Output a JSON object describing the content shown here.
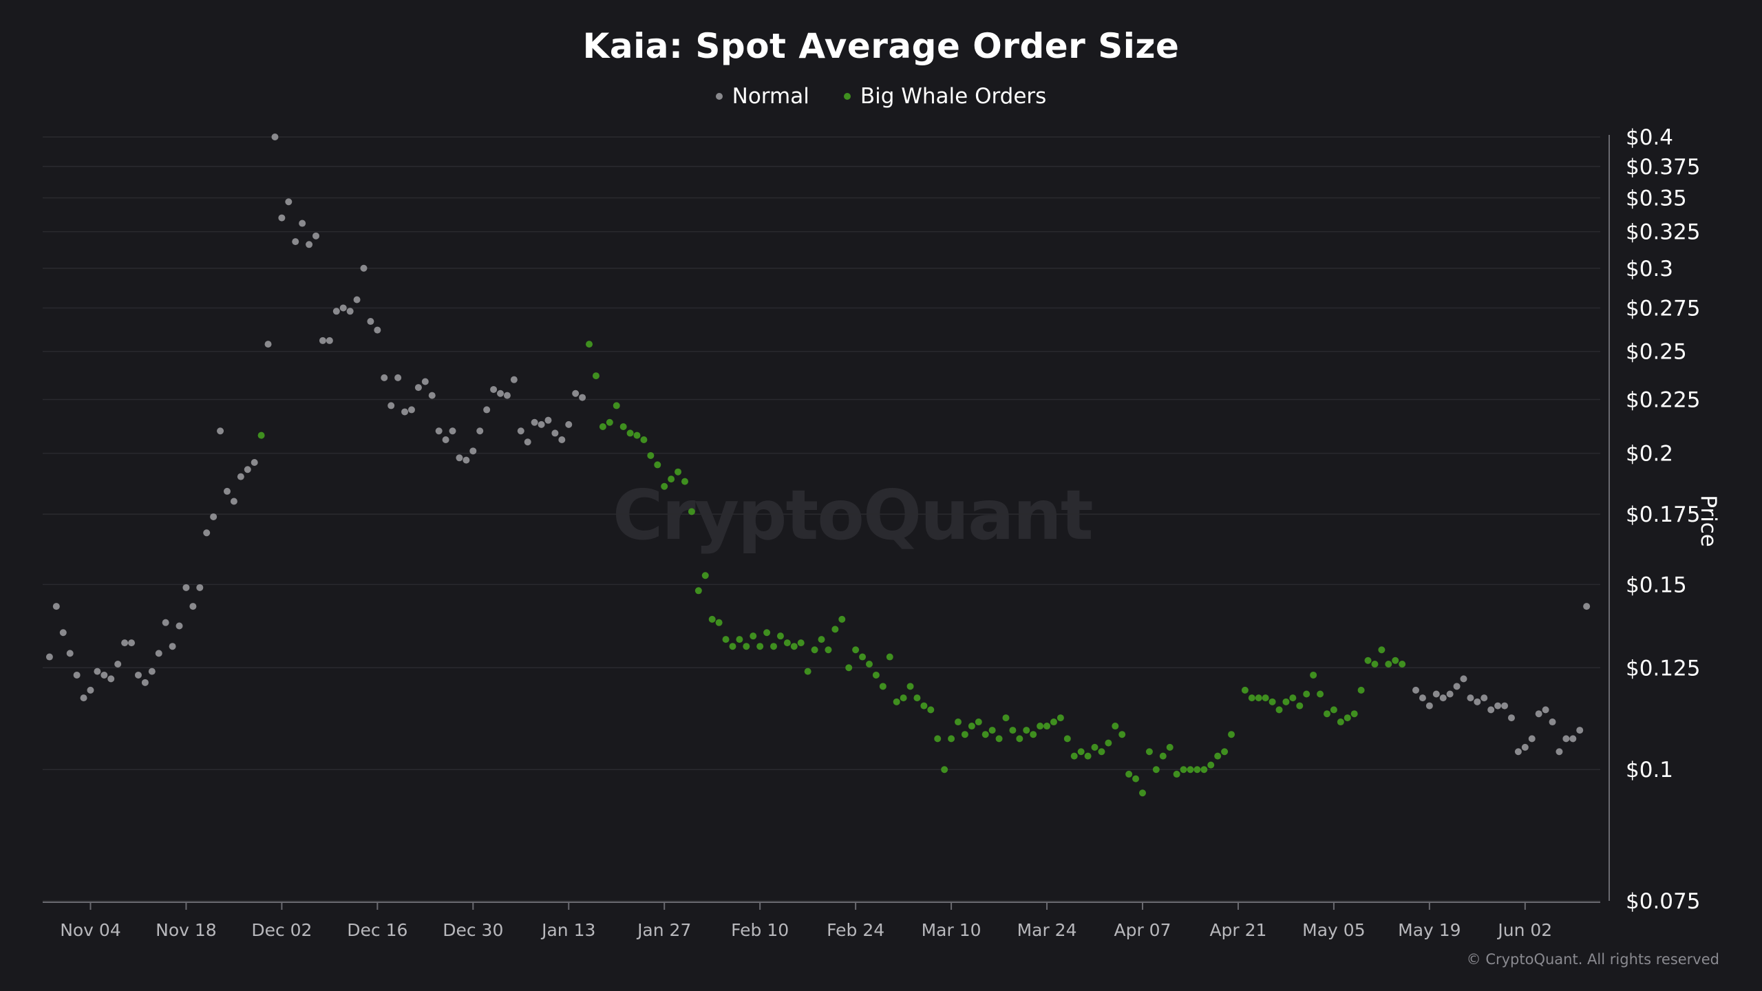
{
  "title": "Kaia: Spot Average Order Size",
  "watermark": "CryptoQuant",
  "credit": "© CryptoQuant. All rights reserved",
  "colors": {
    "background": "#19191d",
    "normal": "#8a8a8e",
    "big_whale": "#3f8f1f",
    "grid": "#2a2a2f",
    "axis_text": "#ffffff",
    "x_tick_text": "#b8b8bc"
  },
  "chart_data": {
    "type": "scatter",
    "title": "Kaia: Spot Average Order Size",
    "ylabel": "Price",
    "xlabel": "",
    "y_scale": "log",
    "ylim": [
      0.075,
      0.4
    ],
    "xlim": [
      "2024-10-28",
      "2025-06-13"
    ],
    "grid": "horizontal",
    "legend_placement": "top-center",
    "y_ticks": [
      {
        "value": 0.4,
        "label": "$0.4"
      },
      {
        "value": 0.375,
        "label": "$0.375"
      },
      {
        "value": 0.35,
        "label": "$0.35"
      },
      {
        "value": 0.325,
        "label": "$0.325"
      },
      {
        "value": 0.3,
        "label": "$0.3"
      },
      {
        "value": 0.275,
        "label": "$0.275"
      },
      {
        "value": 0.25,
        "label": "$0.25"
      },
      {
        "value": 0.225,
        "label": "$0.225"
      },
      {
        "value": 0.2,
        "label": "$0.2"
      },
      {
        "value": 0.175,
        "label": "$0.175"
      },
      {
        "value": 0.15,
        "label": "$0.15"
      },
      {
        "value": 0.125,
        "label": "$0.125"
      },
      {
        "value": 0.1,
        "label": "$0.1"
      },
      {
        "value": 0.075,
        "label": "$0.075"
      }
    ],
    "x_ticks": [
      {
        "date": "2024-11-04",
        "label": "Nov 04"
      },
      {
        "date": "2024-11-18",
        "label": "Nov 18"
      },
      {
        "date": "2024-12-02",
        "label": "Dec 02"
      },
      {
        "date": "2024-12-16",
        "label": "Dec 16"
      },
      {
        "date": "2024-12-30",
        "label": "Dec 30"
      },
      {
        "date": "2025-01-13",
        "label": "Jan 13"
      },
      {
        "date": "2025-01-27",
        "label": "Jan 27"
      },
      {
        "date": "2025-02-10",
        "label": "Feb 10"
      },
      {
        "date": "2025-02-24",
        "label": "Feb 24"
      },
      {
        "date": "2025-03-10",
        "label": "Mar 10"
      },
      {
        "date": "2025-03-24",
        "label": "Mar 24"
      },
      {
        "date": "2025-04-07",
        "label": "Apr 07"
      },
      {
        "date": "2025-04-21",
        "label": "Apr 21"
      },
      {
        "date": "2025-05-05",
        "label": "May 05"
      },
      {
        "date": "2025-05-19",
        "label": "May 19"
      },
      {
        "date": "2025-06-02",
        "label": "Jun 02"
      }
    ],
    "series": [
      {
        "name": "Normal",
        "color": "#8a8a8e",
        "points": [
          [
            "2024-10-29",
            0.128
          ],
          [
            "2024-10-30",
            0.143
          ],
          [
            "2024-10-31",
            0.135
          ],
          [
            "2024-11-01",
            0.129
          ],
          [
            "2024-11-02",
            0.123
          ],
          [
            "2024-11-03",
            0.117
          ],
          [
            "2024-11-04",
            0.119
          ],
          [
            "2024-11-05",
            0.124
          ],
          [
            "2024-11-06",
            0.123
          ],
          [
            "2024-11-07",
            0.122
          ],
          [
            "2024-11-08",
            0.126
          ],
          [
            "2024-11-09",
            0.132
          ],
          [
            "2024-11-10",
            0.132
          ],
          [
            "2024-11-11",
            0.123
          ],
          [
            "2024-11-12",
            0.121
          ],
          [
            "2024-11-13",
            0.124
          ],
          [
            "2024-11-14",
            0.129
          ],
          [
            "2024-11-15",
            0.138
          ],
          [
            "2024-11-16",
            0.131
          ],
          [
            "2024-11-17",
            0.137
          ],
          [
            "2024-11-18",
            0.149
          ],
          [
            "2024-11-19",
            0.143
          ],
          [
            "2024-11-20",
            0.149
          ],
          [
            "2024-11-21",
            0.168
          ],
          [
            "2024-11-22",
            0.174
          ],
          [
            "2024-11-23",
            0.21
          ],
          [
            "2024-11-24",
            0.184
          ],
          [
            "2024-11-25",
            0.18
          ],
          [
            "2024-11-26",
            0.19
          ],
          [
            "2024-11-27",
            0.193
          ],
          [
            "2024-11-28",
            0.196
          ],
          [
            "2024-11-30",
            0.254
          ],
          [
            "2024-12-01",
            0.4
          ],
          [
            "2024-12-02",
            0.335
          ],
          [
            "2024-12-03",
            0.347
          ],
          [
            "2024-12-04",
            0.318
          ],
          [
            "2024-12-05",
            0.331
          ],
          [
            "2024-12-06",
            0.316
          ],
          [
            "2024-12-07",
            0.322
          ],
          [
            "2024-12-08",
            0.256
          ],
          [
            "2024-12-09",
            0.256
          ],
          [
            "2024-12-10",
            0.273
          ],
          [
            "2024-12-11",
            0.275
          ],
          [
            "2024-12-12",
            0.273
          ],
          [
            "2024-12-13",
            0.28
          ],
          [
            "2024-12-14",
            0.3
          ],
          [
            "2024-12-15",
            0.267
          ],
          [
            "2024-12-16",
            0.262
          ],
          [
            "2024-12-17",
            0.236
          ],
          [
            "2024-12-18",
            0.222
          ],
          [
            "2024-12-19",
            0.236
          ],
          [
            "2024-12-20",
            0.219
          ],
          [
            "2024-12-21",
            0.22
          ],
          [
            "2024-12-22",
            0.231
          ],
          [
            "2024-12-23",
            0.234
          ],
          [
            "2024-12-24",
            0.227
          ],
          [
            "2024-12-25",
            0.21
          ],
          [
            "2024-12-26",
            0.206
          ],
          [
            "2024-12-27",
            0.21
          ],
          [
            "2024-12-28",
            0.198
          ],
          [
            "2024-12-29",
            0.197
          ],
          [
            "2024-12-30",
            0.201
          ],
          [
            "2024-12-31",
            0.21
          ],
          [
            "2025-01-01",
            0.22
          ],
          [
            "2025-01-02",
            0.23
          ],
          [
            "2025-01-03",
            0.228
          ],
          [
            "2025-01-04",
            0.227
          ],
          [
            "2025-01-05",
            0.235
          ],
          [
            "2025-01-06",
            0.21
          ],
          [
            "2025-01-07",
            0.205
          ],
          [
            "2025-01-08",
            0.214
          ],
          [
            "2025-01-09",
            0.213
          ],
          [
            "2025-01-10",
            0.215
          ],
          [
            "2025-01-11",
            0.209
          ],
          [
            "2025-01-12",
            0.206
          ],
          [
            "2025-01-13",
            0.213
          ],
          [
            "2025-01-14",
            0.228
          ],
          [
            "2025-01-15",
            0.226
          ],
          [
            "2025-05-17",
            0.119
          ],
          [
            "2025-05-18",
            0.117
          ],
          [
            "2025-05-19",
            0.115
          ],
          [
            "2025-05-20",
            0.118
          ],
          [
            "2025-05-21",
            0.117
          ],
          [
            "2025-05-22",
            0.118
          ],
          [
            "2025-05-23",
            0.12
          ],
          [
            "2025-05-24",
            0.122
          ],
          [
            "2025-05-25",
            0.117
          ],
          [
            "2025-05-26",
            0.116
          ],
          [
            "2025-05-27",
            0.117
          ],
          [
            "2025-05-28",
            0.114
          ],
          [
            "2025-05-29",
            0.115
          ],
          [
            "2025-05-30",
            0.115
          ],
          [
            "2025-05-31",
            0.112
          ],
          [
            "2025-06-01",
            0.104
          ],
          [
            "2025-06-02",
            0.105
          ],
          [
            "2025-06-03",
            0.107
          ],
          [
            "2025-06-04",
            0.113
          ],
          [
            "2025-06-05",
            0.114
          ],
          [
            "2025-06-06",
            0.111
          ],
          [
            "2025-06-07",
            0.104
          ],
          [
            "2025-06-08",
            0.107
          ],
          [
            "2025-06-09",
            0.107
          ],
          [
            "2025-06-10",
            0.109
          ],
          [
            "2025-06-11",
            0.143
          ]
        ]
      },
      {
        "name": "Big Whale Orders",
        "color": "#3f8f1f",
        "points": [
          [
            "2024-11-29",
            0.208
          ],
          [
            "2025-01-16",
            0.254
          ],
          [
            "2025-01-17",
            0.237
          ],
          [
            "2025-01-18",
            0.212
          ],
          [
            "2025-01-19",
            0.214
          ],
          [
            "2025-01-20",
            0.222
          ],
          [
            "2025-01-21",
            0.212
          ],
          [
            "2025-01-22",
            0.209
          ],
          [
            "2025-01-23",
            0.208
          ],
          [
            "2025-01-24",
            0.206
          ],
          [
            "2025-01-25",
            0.199
          ],
          [
            "2025-01-26",
            0.195
          ],
          [
            "2025-01-27",
            0.186
          ],
          [
            "2025-01-28",
            0.189
          ],
          [
            "2025-01-29",
            0.192
          ],
          [
            "2025-01-30",
            0.188
          ],
          [
            "2025-01-31",
            0.176
          ],
          [
            "2025-02-01",
            0.148
          ],
          [
            "2025-02-02",
            0.153
          ],
          [
            "2025-02-03",
            0.139
          ],
          [
            "2025-02-04",
            0.138
          ],
          [
            "2025-02-05",
            0.133
          ],
          [
            "2025-02-06",
            0.131
          ],
          [
            "2025-02-07",
            0.133
          ],
          [
            "2025-02-08",
            0.131
          ],
          [
            "2025-02-09",
            0.134
          ],
          [
            "2025-02-10",
            0.131
          ],
          [
            "2025-02-11",
            0.135
          ],
          [
            "2025-02-12",
            0.131
          ],
          [
            "2025-02-13",
            0.134
          ],
          [
            "2025-02-14",
            0.132
          ],
          [
            "2025-02-15",
            0.131
          ],
          [
            "2025-02-16",
            0.132
          ],
          [
            "2025-02-17",
            0.124
          ],
          [
            "2025-02-18",
            0.13
          ],
          [
            "2025-02-19",
            0.133
          ],
          [
            "2025-02-20",
            0.13
          ],
          [
            "2025-02-21",
            0.136
          ],
          [
            "2025-02-22",
            0.139
          ],
          [
            "2025-02-23",
            0.125
          ],
          [
            "2025-02-24",
            0.13
          ],
          [
            "2025-02-25",
            0.128
          ],
          [
            "2025-02-26",
            0.126
          ],
          [
            "2025-02-27",
            0.123
          ],
          [
            "2025-02-28",
            0.12
          ],
          [
            "2025-03-01",
            0.128
          ],
          [
            "2025-03-02",
            0.116
          ],
          [
            "2025-03-03",
            0.117
          ],
          [
            "2025-03-04",
            0.12
          ],
          [
            "2025-03-05",
            0.117
          ],
          [
            "2025-03-06",
            0.115
          ],
          [
            "2025-03-07",
            0.114
          ],
          [
            "2025-03-08",
            0.107
          ],
          [
            "2025-03-09",
            0.1
          ],
          [
            "2025-03-10",
            0.107
          ],
          [
            "2025-03-11",
            0.111
          ],
          [
            "2025-03-12",
            0.108
          ],
          [
            "2025-03-13",
            0.11
          ],
          [
            "2025-03-14",
            0.111
          ],
          [
            "2025-03-15",
            0.108
          ],
          [
            "2025-03-16",
            0.109
          ],
          [
            "2025-03-17",
            0.107
          ],
          [
            "2025-03-18",
            0.112
          ],
          [
            "2025-03-19",
            0.109
          ],
          [
            "2025-03-20",
            0.107
          ],
          [
            "2025-03-21",
            0.109
          ],
          [
            "2025-03-22",
            0.108
          ],
          [
            "2025-03-23",
            0.11
          ],
          [
            "2025-03-24",
            0.11
          ],
          [
            "2025-03-25",
            0.111
          ],
          [
            "2025-03-26",
            0.112
          ],
          [
            "2025-03-27",
            0.107
          ],
          [
            "2025-03-28",
            0.103
          ],
          [
            "2025-03-29",
            0.104
          ],
          [
            "2025-03-30",
            0.103
          ],
          [
            "2025-03-31",
            0.105
          ],
          [
            "2025-04-01",
            0.104
          ],
          [
            "2025-04-02",
            0.106
          ],
          [
            "2025-04-03",
            0.11
          ],
          [
            "2025-04-04",
            0.108
          ],
          [
            "2025-04-05",
            0.099
          ],
          [
            "2025-04-06",
            0.098
          ],
          [
            "2025-04-07",
            0.095
          ],
          [
            "2025-04-08",
            0.104
          ],
          [
            "2025-04-09",
            0.1
          ],
          [
            "2025-04-10",
            0.103
          ],
          [
            "2025-04-11",
            0.105
          ],
          [
            "2025-04-12",
            0.099
          ],
          [
            "2025-04-13",
            0.1
          ],
          [
            "2025-04-14",
            0.1
          ],
          [
            "2025-04-15",
            0.1
          ],
          [
            "2025-04-16",
            0.1
          ],
          [
            "2025-04-17",
            0.101
          ],
          [
            "2025-04-18",
            0.103
          ],
          [
            "2025-04-19",
            0.104
          ],
          [
            "2025-04-20",
            0.108
          ],
          [
            "2025-04-22",
            0.119
          ],
          [
            "2025-04-23",
            0.117
          ],
          [
            "2025-04-24",
            0.117
          ],
          [
            "2025-04-25",
            0.117
          ],
          [
            "2025-04-26",
            0.116
          ],
          [
            "2025-04-27",
            0.114
          ],
          [
            "2025-04-28",
            0.116
          ],
          [
            "2025-04-29",
            0.117
          ],
          [
            "2025-04-30",
            0.115
          ],
          [
            "2025-05-01",
            0.118
          ],
          [
            "2025-05-02",
            0.123
          ],
          [
            "2025-05-03",
            0.118
          ],
          [
            "2025-05-04",
            0.113
          ],
          [
            "2025-05-05",
            0.114
          ],
          [
            "2025-05-06",
            0.111
          ],
          [
            "2025-05-07",
            0.112
          ],
          [
            "2025-05-08",
            0.113
          ],
          [
            "2025-05-09",
            0.119
          ],
          [
            "2025-05-10",
            0.127
          ],
          [
            "2025-05-11",
            0.126
          ],
          [
            "2025-05-12",
            0.13
          ],
          [
            "2025-05-13",
            0.126
          ],
          [
            "2025-05-14",
            0.127
          ],
          [
            "2025-05-15",
            0.126
          ]
        ]
      }
    ]
  }
}
